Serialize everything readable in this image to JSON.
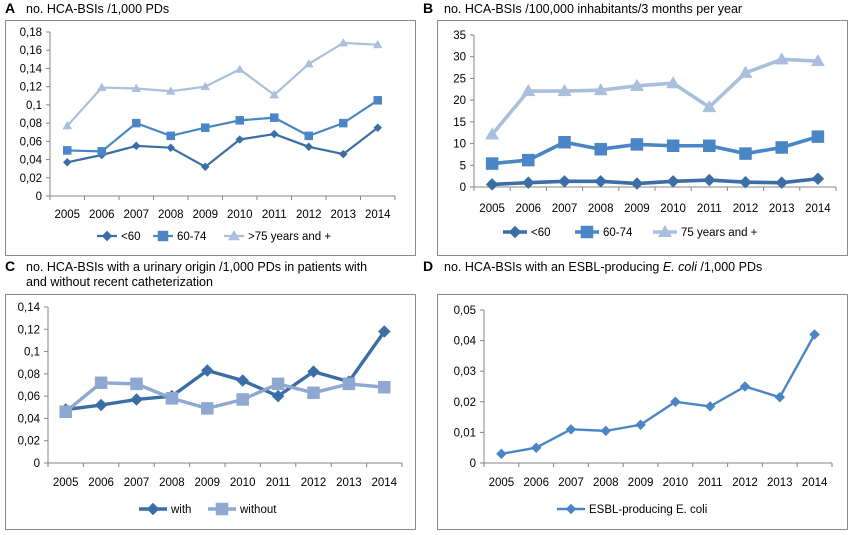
{
  "figure": {
    "panels": [
      {
        "letter": "A",
        "title_parts": [
          {
            "t": "no. HCA-BSIs /1,000 PDs"
          }
        ]
      },
      {
        "letter": "B",
        "title_parts": [
          {
            "t": "no. HCA-BSIs /100,000 inhabitants/3 months per year"
          }
        ]
      },
      {
        "letter": "C",
        "title_parts": [
          {
            "t": "no. HCA-BSIs with a urinary origin /1,000 PDs in patients with"
          }
        ],
        "title_line2": "and without recent catheterization"
      },
      {
        "letter": "D",
        "title_parts": [
          {
            "t": "no. HCA-BSIs with an ESBL-producing "
          },
          {
            "t": "E. coli",
            "i": true
          },
          {
            "t": " /1,000 PDs"
          }
        ]
      }
    ]
  },
  "chart_data": [
    {
      "type": "line",
      "panel": "A",
      "categories": [
        "2005",
        "2006",
        "2007",
        "2008",
        "2009",
        "2010",
        "2011",
        "2012",
        "2013",
        "2014"
      ],
      "ylim": [
        0,
        0.18
      ],
      "yticks": [
        "0",
        "0,02",
        "0,04",
        "0,06",
        "0,08",
        "0,1",
        "0,12",
        "0,14",
        "0,16",
        "0,18"
      ],
      "series": [
        {
          "name": "<60",
          "values": [
            0.037,
            0.045,
            0.055,
            0.053,
            0.032,
            0.062,
            0.068,
            0.054,
            0.046,
            0.075
          ],
          "color": "#3a6ea5",
          "marker": "diamond"
        },
        {
          "name": "60-74",
          "values": [
            0.05,
            0.049,
            0.08,
            0.066,
            0.075,
            0.083,
            0.086,
            0.066,
            0.08,
            0.105
          ],
          "color": "#4a86c5",
          "marker": "square"
        },
        {
          "name": ">75 years and +",
          "values": [
            0.077,
            0.119,
            0.118,
            0.115,
            0.12,
            0.139,
            0.111,
            0.145,
            0.168,
            0.166
          ],
          "color": "#a9bfdb",
          "marker": "triangle"
        }
      ]
    },
    {
      "type": "line",
      "panel": "B",
      "categories": [
        "2005",
        "2006",
        "2007",
        "2008",
        "2009",
        "2010",
        "2011",
        "2012",
        "2013",
        "2014"
      ],
      "ylim": [
        0,
        35
      ],
      "yticks": [
        "0",
        "5",
        "10",
        "15",
        "20",
        "25",
        "30",
        "35"
      ],
      "series": [
        {
          "name": "<60",
          "values": [
            0.6,
            1.0,
            1.3,
            1.3,
            0.8,
            1.3,
            1.6,
            1.1,
            1.0,
            1.9
          ],
          "color": "#3a6ea5",
          "marker": "diamond"
        },
        {
          "name": "60-74",
          "values": [
            5.4,
            6.2,
            10.3,
            8.7,
            9.8,
            9.5,
            9.5,
            7.7,
            9.1,
            11.6
          ],
          "color": "#4a86c5",
          "marker": "square"
        },
        {
          "name": "75 years and +",
          "values": [
            12.1,
            22.1,
            22.1,
            22.3,
            23.3,
            23.9,
            18.4,
            26.3,
            29.4,
            29.0
          ],
          "color": "#a9bfdb",
          "marker": "triangle"
        }
      ]
    },
    {
      "type": "line",
      "panel": "C",
      "categories": [
        "2005",
        "2006",
        "2007",
        "2008",
        "2009",
        "2010",
        "2011",
        "2012",
        "2013",
        "2014"
      ],
      "ylim": [
        0,
        0.14
      ],
      "yticks": [
        "0",
        "0,02",
        "0,04",
        "0,06",
        "0,08",
        "0,1",
        "0,12",
        "0,14"
      ],
      "series": [
        {
          "name": "with",
          "values": [
            0.048,
            0.052,
            0.057,
            0.06,
            0.083,
            0.074,
            0.06,
            0.082,
            0.073,
            0.118
          ],
          "color": "#3a6ea5",
          "marker": "diamond"
        },
        {
          "name": "without",
          "values": [
            0.046,
            0.072,
            0.071,
            0.058,
            0.049,
            0.057,
            0.071,
            0.063,
            0.071,
            0.068
          ],
          "color": "#8fa8d2",
          "marker": "square"
        }
      ]
    },
    {
      "type": "line",
      "panel": "D",
      "categories": [
        "2005",
        "2006",
        "2007",
        "2008",
        "2009",
        "2010",
        "2011",
        "2012",
        "2013",
        "2014"
      ],
      "ylim": [
        0,
        0.05
      ],
      "yticks": [
        "0",
        "0,01",
        "0,02",
        "0,03",
        "0,04",
        "0,05"
      ],
      "series": [
        {
          "name": "ESBL-producing E. coli",
          "values": [
            0.003,
            0.005,
            0.011,
            0.0105,
            0.0125,
            0.02,
            0.0185,
            0.025,
            0.0215,
            0.042
          ],
          "color": "#4a86c5",
          "marker": "diamond"
        }
      ]
    }
  ]
}
